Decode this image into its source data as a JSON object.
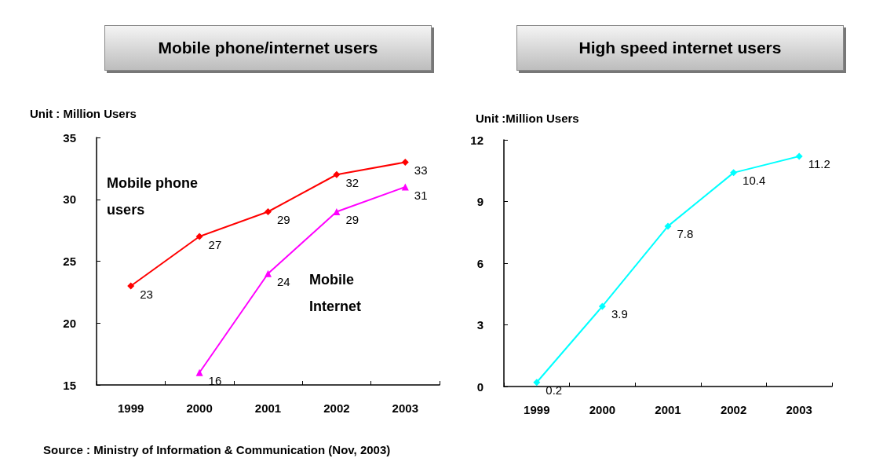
{
  "chart_data": [
    {
      "type": "line",
      "title": "Mobile phone/internet users",
      "ylabel": "Unit : Million Users",
      "categories": [
        "1999",
        "2000",
        "2001",
        "2002",
        "2003"
      ],
      "series": [
        {
          "name": "Mobile phone users",
          "color": "#ff0000",
          "marker": "diamond",
          "values": [
            23,
            27,
            29,
            32,
            33
          ]
        },
        {
          "name": "Mobile Internet",
          "color": "#ff00ff",
          "marker": "triangle",
          "values": [
            null,
            16,
            24,
            29,
            31
          ]
        }
      ],
      "ylim": [
        15,
        35
      ],
      "yticks": [
        15,
        20,
        25,
        30,
        35
      ],
      "grid": false,
      "legend": false,
      "data_labels": true,
      "line_style": "solid",
      "annotations": [
        "Source : Ministry of Information & Communication (Nov, 2003)"
      ]
    },
    {
      "type": "line",
      "title": "High speed internet users",
      "ylabel": "Unit :Million Users",
      "categories": [
        "1999",
        "2000",
        "2001",
        "2002",
        "2003"
      ],
      "series": [
        {
          "color": "#00ffff",
          "marker": "diamond",
          "values": [
            0.2,
            3.9,
            7.8,
            10.4,
            11.2
          ]
        }
      ],
      "ylim": [
        0,
        12
      ],
      "yticks": [
        0,
        3,
        6,
        9,
        12
      ],
      "grid": false,
      "legend": false,
      "data_labels": true,
      "line_style": "solid"
    }
  ]
}
